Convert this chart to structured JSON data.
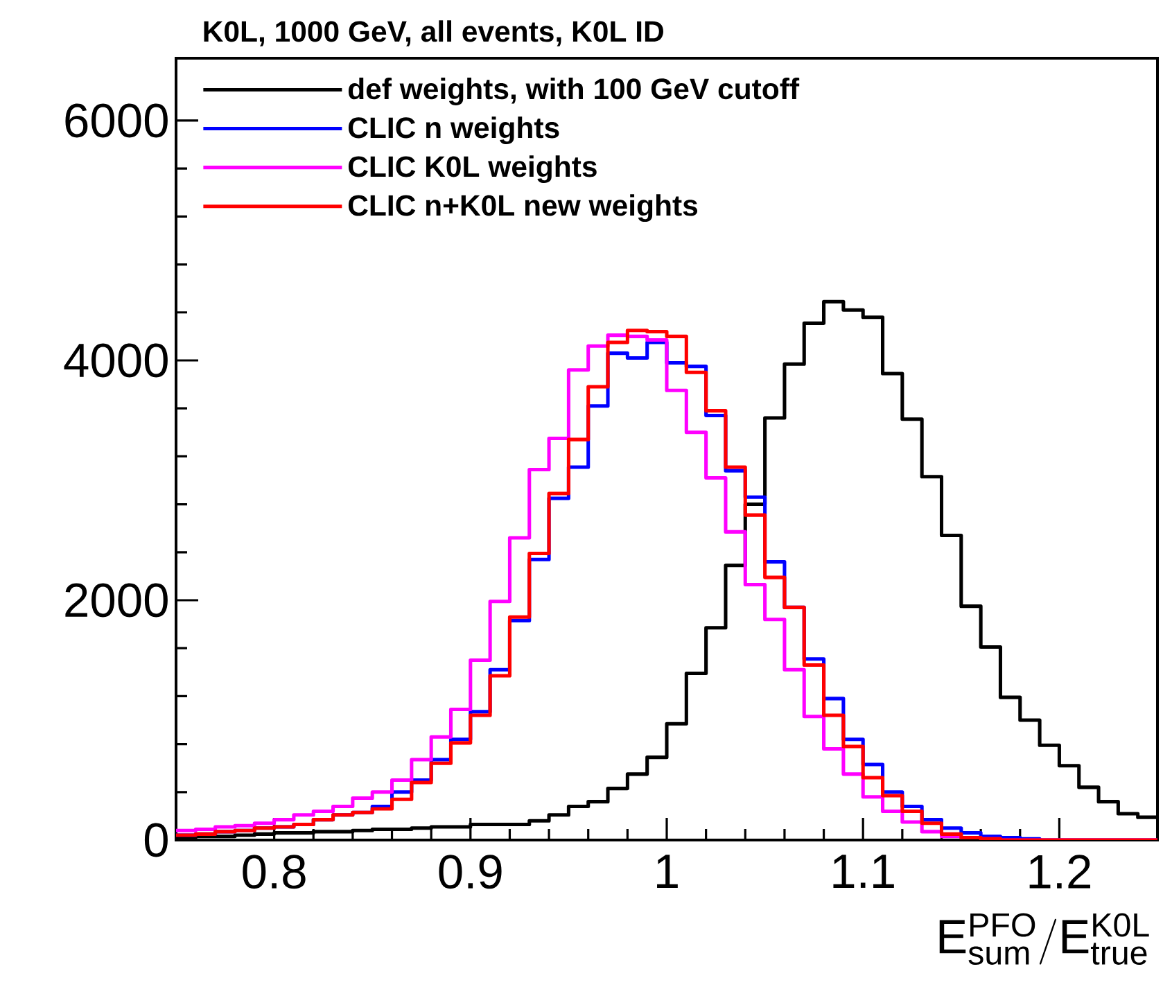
{
  "chart_data": {
    "type": "histogram",
    "title": "K0L, 1000 GeV, all events, K0L ID",
    "xlabel": "\\mathrm{E^{PFO}_{sum}/E^{K0L}_{true}}",
    "bins": [
      0.75,
      0.76,
      0.77,
      0.78,
      0.79,
      0.8,
      0.81,
      0.82,
      0.83,
      0.84,
      0.85,
      0.86,
      0.87,
      0.88,
      0.89,
      0.9,
      0.91,
      0.92,
      0.93,
      0.94,
      0.95,
      0.96,
      0.97,
      0.98,
      0.99,
      1.0,
      1.01,
      1.02,
      1.03,
      1.04,
      1.05,
      1.06,
      1.07,
      1.08,
      1.09,
      1.1,
      1.11,
      1.12,
      1.13,
      1.14,
      1.15,
      1.16,
      1.17,
      1.18,
      1.19,
      1.2,
      1.21,
      1.22,
      1.23,
      1.24,
      1.25
    ],
    "series": [
      {
        "name": "def weights, with 100 GeV cutoff",
        "color": "#000000",
        "values": [
          20,
          30,
          30,
          40,
          50,
          60,
          60,
          70,
          70,
          80,
          90,
          90,
          100,
          110,
          110,
          130,
          130,
          130,
          160,
          210,
          280,
          320,
          430,
          550,
          690,
          970,
          1390,
          1770,
          2290,
          2800,
          3520,
          3970,
          4310,
          4490,
          4420,
          4360,
          3890,
          3510,
          3030,
          2540,
          1950,
          1610,
          1190,
          1000,
          790,
          620,
          440,
          320,
          220,
          190
        ]
      },
      {
        "name": "CLIC n weights",
        "color": "#0000ff",
        "values": [
          40,
          50,
          70,
          80,
          100,
          110,
          130,
          170,
          210,
          230,
          280,
          400,
          500,
          670,
          840,
          1070,
          1420,
          1830,
          2340,
          2850,
          3110,
          3620,
          4060,
          4020,
          4150,
          3980,
          3950,
          3540,
          3080,
          2860,
          2320,
          1940,
          1510,
          1180,
          840,
          630,
          400,
          280,
          170,
          100,
          60,
          30,
          20,
          10,
          0,
          0,
          0,
          0,
          0,
          0
        ]
      },
      {
        "name": "CLIC K0L weights",
        "color": "#ff00ff",
        "values": [
          80,
          90,
          110,
          120,
          140,
          170,
          210,
          240,
          280,
          350,
          400,
          500,
          670,
          860,
          1090,
          1500,
          1990,
          2520,
          3090,
          3350,
          3920,
          4120,
          4210,
          4200,
          4170,
          3750,
          3400,
          3020,
          2570,
          2130,
          1840,
          1420,
          1030,
          760,
          550,
          360,
          240,
          150,
          70,
          30,
          20,
          10,
          0,
          0,
          0,
          0,
          0,
          0,
          0,
          0
        ]
      },
      {
        "name": "CLIC n+K0L new weights",
        "color": "#ff0000",
        "values": [
          40,
          50,
          70,
          80,
          100,
          110,
          130,
          170,
          210,
          230,
          260,
          340,
          480,
          640,
          810,
          1040,
          1370,
          1860,
          2390,
          2890,
          3340,
          3780,
          4150,
          4250,
          4240,
          4200,
          3900,
          3580,
          3110,
          2710,
          2190,
          1940,
          1460,
          1040,
          780,
          520,
          370,
          240,
          140,
          50,
          20,
          10,
          0,
          0,
          0,
          0,
          0,
          0,
          0,
          0
        ]
      }
    ],
    "xlim": [
      0.75,
      1.25
    ],
    "ylim": [
      0,
      6520
    ],
    "xticks": [
      0.8,
      0.9,
      1,
      1.1,
      1.2
    ],
    "yticks": [
      0,
      2000,
      4000,
      6000
    ],
    "grid": false,
    "legend": "top left"
  }
}
